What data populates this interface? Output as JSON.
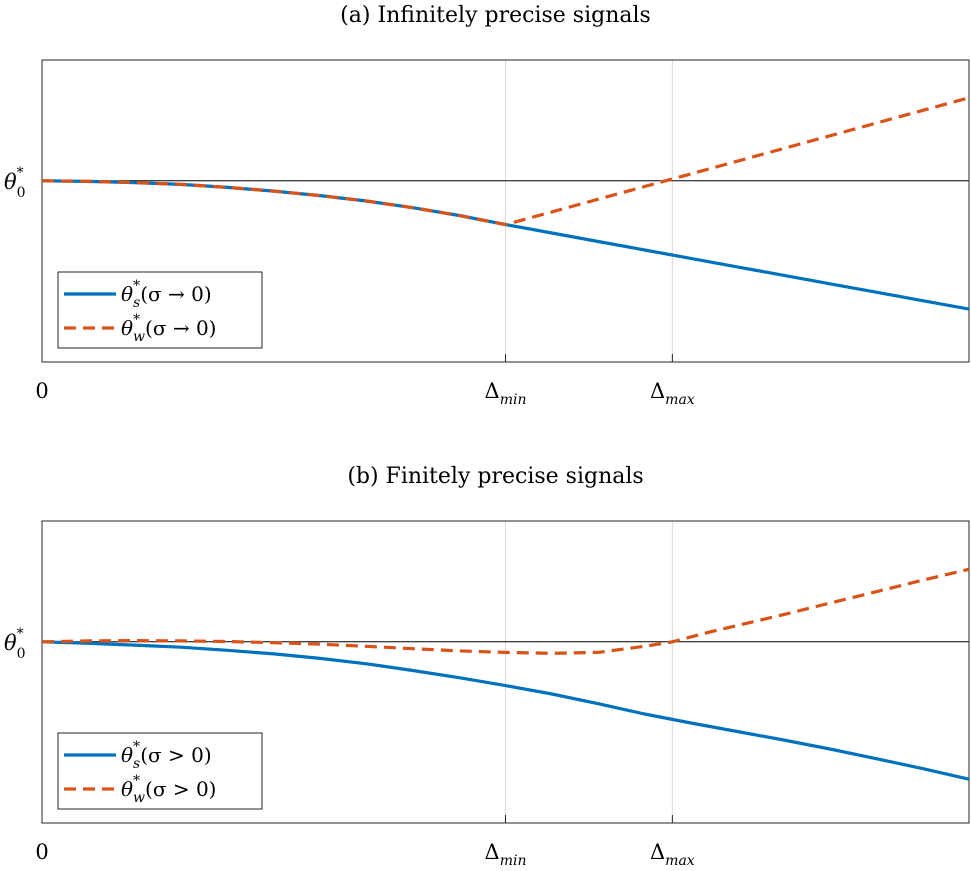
{
  "chart_data": [
    {
      "type": "line",
      "title": "(a) Infinitely precise signals",
      "x_ticks": [
        {
          "x": 0,
          "label": "0",
          "sub": ""
        },
        {
          "x": 0.5,
          "label": "Δ",
          "sub": "min"
        },
        {
          "x": 0.68,
          "label": "Δ",
          "sub": "max"
        }
      ],
      "y_ticks": [
        {
          "y": 0.6,
          "label": "θ",
          "sup": "*",
          "sub": "0"
        }
      ],
      "xlim": [
        0,
        1
      ],
      "ylim": [
        0,
        1
      ],
      "reference_line_y": 0.6,
      "vertical_guides": [
        0.5,
        0.68
      ],
      "legend_position": "lower-left",
      "series": [
        {
          "name_main": "θ",
          "name_sup": "*",
          "name_sub": "s",
          "name_rest": "(σ → 0)",
          "color": "#0072BD",
          "style": "solid",
          "x": [
            0,
            0.05,
            0.1,
            0.15,
            0.2,
            0.25,
            0.3,
            0.35,
            0.4,
            0.45,
            0.5,
            0.55,
            0.6,
            0.65,
            0.7,
            0.75,
            0.8,
            0.85,
            0.9,
            0.95,
            1.0
          ],
          "y": [
            0.6,
            0.598,
            0.594,
            0.588,
            0.578,
            0.566,
            0.551,
            0.533,
            0.511,
            0.485,
            0.455,
            0.427,
            0.399,
            0.371,
            0.343,
            0.315,
            0.287,
            0.259,
            0.231,
            0.203,
            0.175
          ]
        },
        {
          "name_main": "θ",
          "name_sup": "*",
          "name_sub": "w",
          "name_rest": "(σ → 0)",
          "color": "#D95319",
          "style": "dashed",
          "x": [
            0,
            0.05,
            0.1,
            0.15,
            0.2,
            0.25,
            0.3,
            0.35,
            0.4,
            0.45,
            0.5,
            0.55,
            0.6,
            0.65,
            0.7,
            0.75,
            0.8,
            0.85,
            0.9,
            0.95,
            1.0
          ],
          "y": [
            0.6,
            0.598,
            0.594,
            0.588,
            0.578,
            0.566,
            0.551,
            0.533,
            0.511,
            0.485,
            0.455,
            0.497,
            0.539,
            0.581,
            0.623,
            0.665,
            0.707,
            0.749,
            0.791,
            0.833,
            0.875
          ]
        }
      ]
    },
    {
      "type": "line",
      "title": "(b) Finitely precise signals",
      "x_ticks": [
        {
          "x": 0,
          "label": "0",
          "sub": ""
        },
        {
          "x": 0.5,
          "label": "Δ",
          "sub": "min"
        },
        {
          "x": 0.68,
          "label": "Δ",
          "sub": "max"
        }
      ],
      "y_ticks": [
        {
          "y": 0.6,
          "label": "θ",
          "sup": "*",
          "sub": "0"
        }
      ],
      "xlim": [
        0,
        1
      ],
      "ylim": [
        0,
        1
      ],
      "reference_line_y": 0.6,
      "vertical_guides": [
        0.5,
        0.68
      ],
      "legend_position": "lower-left",
      "series": [
        {
          "name_main": "θ",
          "name_sup": "*",
          "name_sub": "s",
          "name_rest": "(σ > 0)",
          "color": "#0072BD",
          "style": "solid",
          "x": [
            0,
            0.05,
            0.1,
            0.15,
            0.2,
            0.25,
            0.3,
            0.35,
            0.4,
            0.45,
            0.5,
            0.55,
            0.6,
            0.65,
            0.7,
            0.75,
            0.8,
            0.85,
            0.9,
            0.95,
            1.0
          ],
          "y": [
            0.6,
            0.595,
            0.589,
            0.582,
            0.572,
            0.56,
            0.545,
            0.527,
            0.505,
            0.481,
            0.455,
            0.427,
            0.395,
            0.361,
            0.331,
            0.303,
            0.275,
            0.245,
            0.213,
            0.18,
            0.145
          ]
        },
        {
          "name_main": "θ",
          "name_sup": "*",
          "name_sub": "w",
          "name_rest": "(σ > 0)",
          "color": "#D95319",
          "style": "dashed",
          "x": [
            0,
            0.05,
            0.1,
            0.15,
            0.2,
            0.25,
            0.3,
            0.35,
            0.4,
            0.45,
            0.5,
            0.55,
            0.6,
            0.65,
            0.68,
            0.72,
            0.8,
            0.85,
            0.9,
            0.95,
            1.0
          ],
          "y": [
            0.6,
            0.603,
            0.604,
            0.603,
            0.601,
            0.597,
            0.592,
            0.585,
            0.577,
            0.57,
            0.565,
            0.562,
            0.565,
            0.585,
            0.6,
            0.632,
            0.69,
            0.728,
            0.766,
            0.804,
            0.84
          ]
        }
      ]
    }
  ]
}
